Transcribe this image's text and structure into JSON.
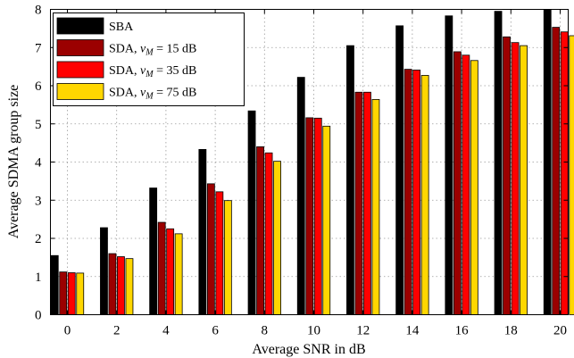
{
  "chart_data": {
    "type": "bar",
    "xlabel": "Average SNR in dB",
    "ylabel": "Average SDMA group size",
    "categories": [
      "0",
      "2",
      "4",
      "6",
      "8",
      "10",
      "12",
      "14",
      "16",
      "18",
      "20"
    ],
    "yticks": [
      "0",
      "1",
      "2",
      "3",
      "4",
      "5",
      "6",
      "7",
      "8"
    ],
    "ylim": [
      0,
      8
    ],
    "grid": true,
    "legend_position": "top-left",
    "series": [
      {
        "name": "SBA",
        "color": "#000000",
        "values": [
          1.55,
          2.28,
          3.32,
          4.33,
          5.34,
          6.22,
          7.05,
          7.57,
          7.83,
          7.95,
          8.0
        ]
      },
      {
        "name": "SDA, ν_M = 15 dB",
        "color": "#9b0000",
        "values": [
          1.12,
          1.6,
          2.42,
          3.43,
          4.4,
          5.16,
          5.83,
          6.43,
          6.89,
          7.28,
          7.53
        ]
      },
      {
        "name": "SDA, ν_M = 35 dB",
        "color": "#ff0000",
        "values": [
          1.1,
          1.52,
          2.25,
          3.22,
          4.24,
          5.15,
          5.83,
          6.41,
          6.8,
          7.13,
          7.41
        ]
      },
      {
        "name": "SDA, ν_M = 75 dB",
        "color": "#ffd700",
        "values": [
          1.09,
          1.47,
          2.12,
          2.99,
          4.02,
          4.94,
          5.64,
          6.27,
          6.66,
          7.05,
          7.31
        ]
      }
    ]
  }
}
